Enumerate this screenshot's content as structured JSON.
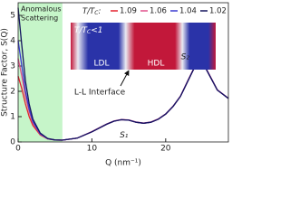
{
  "chart_data": {
    "type": "line",
    "xlabel": "Q (nm⁻¹)",
    "ylabel": "Structure Factor, S(Q)",
    "xlim": [
      0,
      28.5
    ],
    "ylim": [
      0,
      5.5
    ],
    "xticks": [
      0,
      10,
      20
    ],
    "yticks": [
      0,
      1,
      2,
      3,
      4,
      5
    ],
    "highlight": {
      "x": [
        0,
        6
      ],
      "label": [
        "Anomalous",
        "Scattering"
      ],
      "color": "#c6f5c9"
    },
    "legend_title": {
      "text": "T/T",
      "sub": "C",
      "tail": ":"
    },
    "inset": {
      "title": {
        "text": "T/T",
        "sub": "C",
        "tail": "<1"
      },
      "left": "LDL",
      "right": "HDL",
      "pointer": "L-L Interface"
    },
    "annotations": [
      "S₁",
      "S₂"
    ],
    "x": [
      0,
      0.5,
      1,
      1.5,
      2,
      3,
      4,
      5,
      6,
      8,
      10,
      12,
      13,
      14,
      15,
      16,
      17,
      18,
      19,
      20,
      21,
      22,
      23,
      24,
      24.5,
      25,
      26,
      27,
      28.5
    ],
    "series": [
      {
        "name": "1.09",
        "color": "#e4202e",
        "values": [
          2.6,
          2.1,
          1.5,
          1.0,
          0.65,
          0.28,
          0.12,
          0.08,
          0.07,
          0.15,
          0.4,
          0.7,
          0.82,
          0.88,
          0.86,
          0.78,
          0.74,
          0.78,
          0.9,
          1.1,
          1.4,
          1.8,
          2.4,
          3.0,
          3.2,
          3.15,
          2.6,
          2.05,
          1.72
        ]
      },
      {
        "name": "1.06",
        "color": "#e0508a",
        "values": [
          3.3,
          2.6,
          1.8,
          1.2,
          0.75,
          0.3,
          0.12,
          0.08,
          0.07,
          0.15,
          0.41,
          0.71,
          0.83,
          0.89,
          0.87,
          0.79,
          0.75,
          0.79,
          0.91,
          1.11,
          1.41,
          1.81,
          2.42,
          3.02,
          3.22,
          3.17,
          2.62,
          2.06,
          1.73
        ]
      },
      {
        "name": "1.04",
        "color": "#3a3ad0",
        "values": [
          4.0,
          3.0,
          2.0,
          1.3,
          0.8,
          0.32,
          0.13,
          0.08,
          0.07,
          0.15,
          0.4,
          0.7,
          0.82,
          0.88,
          0.86,
          0.78,
          0.74,
          0.78,
          0.9,
          1.1,
          1.4,
          1.8,
          2.4,
          3.0,
          3.2,
          3.15,
          2.6,
          2.05,
          1.72
        ]
      },
      {
        "name": "1.02",
        "color": "#14145e",
        "values": [
          5.3,
          3.8,
          2.4,
          1.5,
          0.9,
          0.35,
          0.14,
          0.08,
          0.07,
          0.15,
          0.4,
          0.7,
          0.82,
          0.88,
          0.86,
          0.78,
          0.74,
          0.78,
          0.9,
          1.1,
          1.4,
          1.8,
          2.4,
          3.0,
          3.2,
          3.15,
          2.6,
          2.05,
          1.72
        ]
      }
    ]
  }
}
